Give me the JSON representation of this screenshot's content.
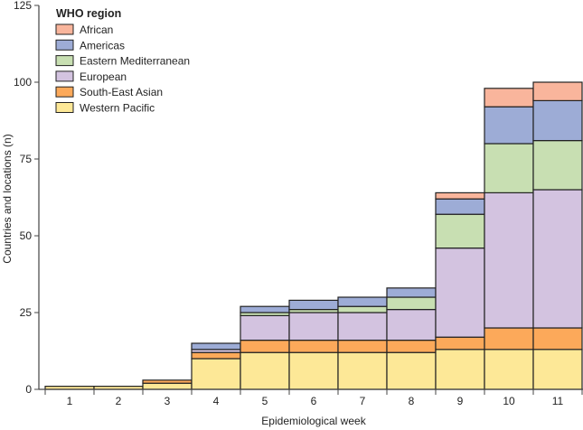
{
  "chart_data": {
    "type": "bar",
    "stacked": true,
    "title": "",
    "xlabel": "Epidemiological week",
    "ylabel": "Countries and locations (n)",
    "ylim": [
      0,
      125
    ],
    "yticks": [
      0,
      25,
      50,
      75,
      100,
      125
    ],
    "categories": [
      "1",
      "2",
      "3",
      "4",
      "5",
      "6",
      "7",
      "8",
      "9",
      "10",
      "11"
    ],
    "legend_title": "WHO region",
    "legend_position": "top-left",
    "series": [
      {
        "name": "Western Pacific",
        "color": "#fde897",
        "values": [
          1,
          1,
          2,
          10,
          12,
          12,
          12,
          12,
          13,
          13,
          13
        ]
      },
      {
        "name": "South-East Asian",
        "color": "#fca95a",
        "values": [
          0,
          0,
          1,
          2,
          4,
          4,
          4,
          4,
          4,
          7,
          7
        ]
      },
      {
        "name": "European",
        "color": "#d3c3e0",
        "values": [
          0,
          0,
          0,
          1,
          8,
          9,
          9,
          10,
          29,
          44,
          45
        ]
      },
      {
        "name": "Eastern Mediterranean",
        "color": "#c8dfb2",
        "values": [
          0,
          0,
          0,
          0,
          1,
          1,
          2,
          4,
          11,
          16,
          16
        ]
      },
      {
        "name": "Americas",
        "color": "#9dacd6",
        "values": [
          0,
          0,
          0,
          2,
          2,
          3,
          3,
          3,
          5,
          12,
          13
        ]
      },
      {
        "name": "African",
        "color": "#f9b59c",
        "values": [
          0,
          0,
          0,
          0,
          0,
          0,
          0,
          0,
          2,
          6,
          6
        ]
      }
    ]
  }
}
